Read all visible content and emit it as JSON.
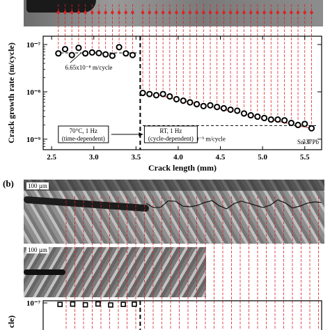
{
  "panel_b_label": "(b)",
  "scale_bar_1": "100 µm",
  "scale_bar_2": "100 µm",
  "chart_data": [
    {
      "type": "scatter",
      "xlabel": "Crack length (mm)",
      "ylabel": "Crack growth rate (m/cycle)",
      "xlim": [
        2.4,
        5.7
      ],
      "ylim": [
        6e-10,
        1.5e-07
      ],
      "log_y": true,
      "xticks": [
        "2.5",
        "3.0",
        "3.5",
        "4.0",
        "4.5",
        "5.0",
        "5.5"
      ],
      "xtick_values": [
        2.5,
        3.0,
        3.5,
        4.0,
        4.5,
        5.0,
        5.5
      ],
      "yticks": [
        "10⁻⁷",
        "10⁻⁸",
        "10⁻⁹"
      ],
      "ytick_values": [
        1e-07,
        1e-08,
        1e-09
      ],
      "series": [
        {
          "x": [
            2.58,
            2.66,
            2.74,
            2.82,
            2.9,
            2.98,
            3.06,
            3.14,
            3.22,
            3.3,
            3.38,
            3.46,
            3.58,
            3.66,
            3.74,
            3.82,
            3.9,
            3.98,
            4.06,
            4.14,
            4.22,
            4.3,
            4.38,
            4.46,
            4.54,
            4.62,
            4.7,
            4.78,
            4.86,
            4.94,
            5.02,
            5.1,
            5.18,
            5.26,
            5.34,
            5.42,
            5.5,
            5.58
          ],
          "y": [
            6.5e-08,
            8e-08,
            6e-08,
            8.5e-08,
            6.5e-08,
            6.8e-08,
            6.6e-08,
            6.2e-08,
            5.8e-08,
            8.8e-08,
            6.5e-08,
            6e-08,
            9.5e-09,
            9e-09,
            8.5e-09,
            9e-09,
            8e-09,
            7e-09,
            6.5e-09,
            6e-09,
            5.5e-09,
            5e-09,
            5.2e-09,
            4.8e-09,
            4.5e-09,
            4.2e-09,
            4e-09,
            3.5e-09,
            3.2e-09,
            3e-09,
            2.8e-09,
            2.6e-09,
            2.6e-09,
            2.5e-09,
            2.2e-09,
            2e-09,
            2.1e-09,
            1.7e-09
          ]
        }
      ],
      "reference_lines": [
        {
          "value": 6.65e-08,
          "x_range": [
            2.55,
            3.52
          ]
        },
        {
          "value": 1.94e-09,
          "x_range": [
            3.58,
            5.65
          ]
        }
      ],
      "trend_line": {
        "x_range": [
          3.58,
          5.6
        ],
        "y_range": [
          1e-08,
          1.65e-09
        ]
      },
      "transition_x": 3.55,
      "annotations": [
        "6.65x10⁻⁸ m/cycle",
        "1.94x10⁻⁹ m/cycle",
        "2.0",
        "Sn-37Pb"
      ],
      "boxes": [
        {
          "line1": "70°C, 1 Hz",
          "line2": "(time-dependent)"
        },
        {
          "line1": "RT, 1 Hz",
          "line2": "(cycle-dependent)"
        }
      ]
    },
    {
      "type": "scatter",
      "xlim": [
        2.4,
        5.7
      ],
      "ylim": [
        6e-10,
        1.5e-07
      ],
      "yticks": [
        "10⁻⁷"
      ],
      "ytick_values": [
        1e-07
      ],
      "ylabel_partial": "cle)",
      "series": [
        {
          "x": [
            2.6,
            2.75,
            2.9,
            3.05,
            3.2,
            3.35,
            3.48
          ],
          "y": [
            7.5e-08,
            8e-08,
            7e-08,
            8.2e-08,
            6.8e-08,
            7.6e-08,
            7.8e-08
          ]
        }
      ]
    }
  ]
}
